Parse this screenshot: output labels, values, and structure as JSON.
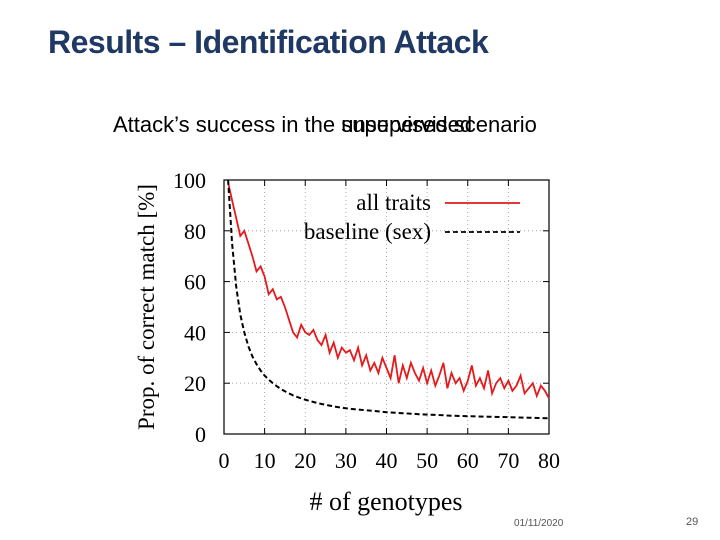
{
  "slide": {
    "title": "Results – Identification Attack",
    "subtitle_prefix": "Attack’s success in the ",
    "subtitle_word_a": "unsupervised",
    "subtitle_word_b": "supervised",
    "subtitle_suffix": " scenario",
    "date": "01/11/2020",
    "page": "29"
  },
  "chart_data": {
    "type": "line",
    "xlabel": "# of genotypes",
    "ylabel": "Prop. of correct match [%]",
    "xlim": [
      0,
      80
    ],
    "ylim": [
      0,
      100
    ],
    "xticks": [
      0,
      10,
      20,
      30,
      40,
      50,
      60,
      70,
      80
    ],
    "yticks": [
      0,
      20,
      40,
      60,
      80,
      100
    ],
    "legend_position": "top-right",
    "series": [
      {
        "name": "all traits",
        "color": "#e41a1c",
        "dash": "solid",
        "x": [
          1,
          2,
          3,
          4,
          5,
          6,
          7,
          8,
          9,
          10,
          11,
          12,
          13,
          14,
          15,
          16,
          17,
          18,
          19,
          20,
          21,
          22,
          23,
          24,
          25,
          26,
          27,
          28,
          29,
          30,
          31,
          32,
          33,
          34,
          35,
          36,
          37,
          38,
          39,
          40,
          41,
          42,
          43,
          44,
          45,
          46,
          47,
          48,
          49,
          50,
          51,
          52,
          53,
          54,
          55,
          56,
          57,
          58,
          59,
          60,
          61,
          62,
          63,
          64,
          65,
          66,
          67,
          68,
          69,
          70,
          71,
          72,
          73,
          74,
          75,
          76,
          77,
          78,
          79,
          80
        ],
        "values": [
          99,
          92,
          85,
          78,
          80,
          75,
          70,
          64,
          66,
          62,
          55,
          57,
          53,
          54,
          50,
          45,
          40,
          38,
          43,
          40,
          39,
          41,
          37,
          35,
          39,
          32,
          36,
          30,
          34,
          32,
          33,
          29,
          34,
          27,
          31,
          25,
          28,
          24,
          30,
          26,
          22,
          31,
          20,
          27,
          22,
          28,
          24,
          21,
          26,
          20,
          25,
          19,
          23,
          28,
          18,
          24,
          20,
          22,
          17,
          21,
          27,
          19,
          22,
          18,
          25,
          16,
          20,
          22,
          18,
          21,
          17,
          19,
          23,
          16,
          18,
          20,
          15,
          19,
          17,
          14
        ]
      },
      {
        "name": "baseline (sex)",
        "color": "#000000",
        "dash": "dashed",
        "x": [
          1,
          2,
          3,
          4,
          5,
          6,
          7,
          8,
          9,
          10,
          11,
          12,
          13,
          14,
          15,
          16,
          17,
          18,
          19,
          20,
          22,
          24,
          26,
          28,
          30,
          33,
          36,
          40,
          44,
          48,
          52,
          56,
          60,
          65,
          70,
          75,
          80
        ],
        "values": [
          100,
          75,
          58,
          47,
          40,
          34.5,
          30.5,
          27.5,
          25,
          23,
          21.4,
          20,
          18.8,
          17.7,
          16.8,
          16,
          15.2,
          14.6,
          14,
          13.5,
          12.6,
          11.8,
          11.2,
          10.6,
          10.1,
          9.6,
          9.2,
          8.6,
          8.2,
          7.8,
          7.5,
          7.2,
          7,
          6.8,
          6.6,
          6.4,
          6.2
        ]
      }
    ]
  }
}
